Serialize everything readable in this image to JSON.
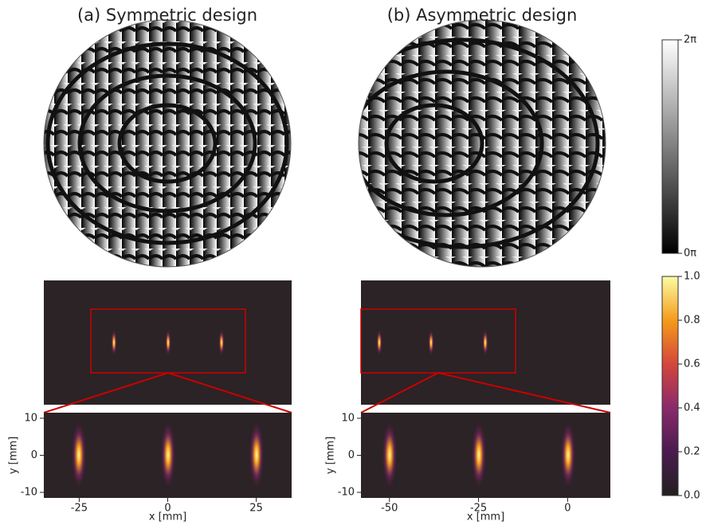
{
  "panels": [
    {
      "title": "(a) Symmetric design",
      "xlabel": "x [mm]",
      "ylabel": "y [mm]",
      "xlim": [
        -35,
        35
      ],
      "ylim": [
        -11.5,
        11.5
      ],
      "xticks": [
        -25,
        0,
        25
      ],
      "yticks": [
        10,
        0,
        -10
      ]
    },
    {
      "title": "(b) Asymmetric design",
      "xlabel": "x [mm]",
      "ylabel": "y [mm]",
      "xlim": [
        -58,
        12
      ],
      "ylim": [
        -11.5,
        11.5
      ],
      "xticks": [
        -50,
        -25,
        0
      ],
      "yticks": [
        10,
        0,
        -10
      ]
    }
  ],
  "colorbars": [
    {
      "lim": [
        0,
        2
      ],
      "ticks": [
        {
          "value": 2,
          "label": "2π"
        },
        {
          "value": 0,
          "label": "0π"
        }
      ]
    },
    {
      "lim": [
        0,
        1
      ],
      "ticks": [
        {
          "value": 1,
          "label": "1.0"
        },
        {
          "value": 0.8,
          "label": "0.8"
        },
        {
          "value": 0.6,
          "label": "0.6"
        },
        {
          "value": 0.4,
          "label": "0.4"
        },
        {
          "value": 0.2,
          "label": "0.2"
        },
        {
          "value": 0,
          "label": "0.0"
        }
      ]
    }
  ]
}
